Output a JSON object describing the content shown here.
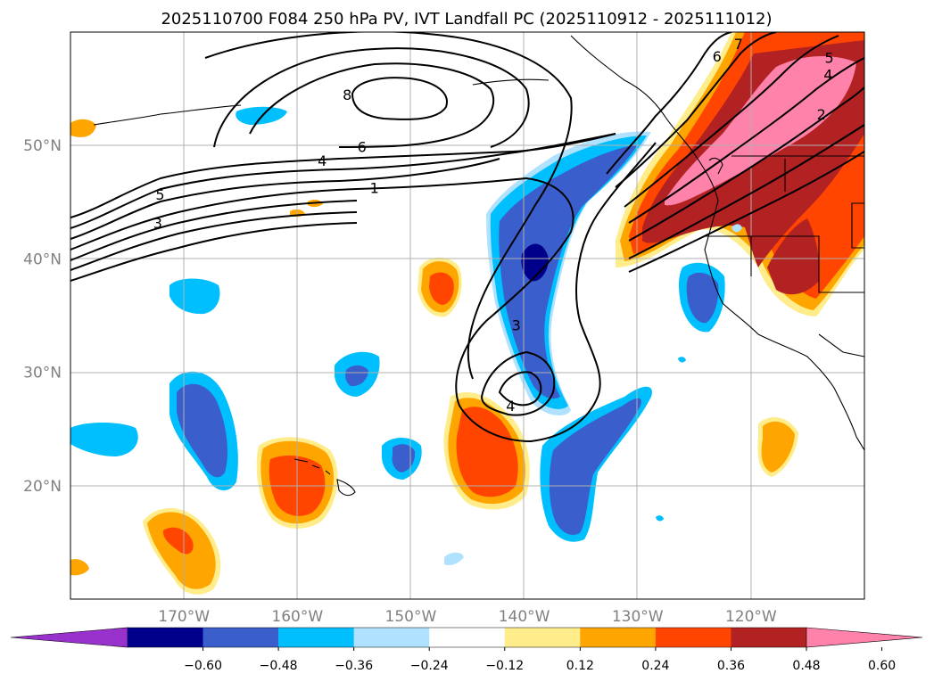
{
  "chart_data": {
    "type": "contour-map",
    "title": "2025110700 F084 250 hPa PV, IVT Landfall PC (2025110912 - 2025111012)",
    "projection": "PlateCarree",
    "xlim": [
      -180,
      -110
    ],
    "ylim": [
      10,
      60
    ],
    "grid": true,
    "xticks": [
      {
        "value": -170,
        "label": "170°W"
      },
      {
        "value": -160,
        "label": "160°W"
      },
      {
        "value": -150,
        "label": "150°W"
      },
      {
        "value": -140,
        "label": "140°W"
      },
      {
        "value": -130,
        "label": "130°W"
      },
      {
        "value": -120,
        "label": "120°W"
      }
    ],
    "yticks": [
      {
        "value": 20,
        "label": "20°N"
      },
      {
        "value": 30,
        "label": "30°N"
      },
      {
        "value": 40,
        "label": "40°N"
      },
      {
        "value": 50,
        "label": "50°N"
      }
    ],
    "shading": {
      "levels": [
        -0.6,
        -0.48,
        -0.36,
        -0.24,
        -0.12,
        0.12,
        0.24,
        0.36,
        0.48,
        0.6
      ],
      "colors": [
        "#9932cc",
        "#00008b",
        "#3a5fcd",
        "#00bfff",
        "#b0e2ff",
        "#ffffff",
        "#ffec8b",
        "#ffa500",
        "#ff4500",
        "#b22222",
        "#ff82ab"
      ],
      "tick_labels": [
        "−0.60",
        "−0.48",
        "−0.36",
        "−0.24",
        "−0.12",
        "0.12",
        "0.24",
        "0.36",
        "0.48",
        "0.60"
      ],
      "extend": "both"
    },
    "contour_labels": [
      {
        "text": "8",
        "lon": -155.6,
        "lat": 54.4
      },
      {
        "text": "6",
        "lon": -154.3,
        "lat": 49.8
      },
      {
        "text": "4",
        "lon": -157.8,
        "lat": 48.6
      },
      {
        "text": "1",
        "lon": -153.2,
        "lat": 46.2
      },
      {
        "text": "5",
        "lon": -172.1,
        "lat": 45.6
      },
      {
        "text": "3",
        "lon": -172.3,
        "lat": 43.1
      },
      {
        "text": "3",
        "lon": -140.7,
        "lat": 34.1
      },
      {
        "text": "4",
        "lon": -141.2,
        "lat": 27.0
      },
      {
        "text": "7",
        "lon": -121.1,
        "lat": 58.9
      },
      {
        "text": "6",
        "lon": -123.0,
        "lat": 57.8
      },
      {
        "text": "5",
        "lon": -113.1,
        "lat": 57.7
      },
      {
        "text": "4",
        "lon": -113.2,
        "lat": 56.2
      },
      {
        "text": "2",
        "lon": -113.8,
        "lat": 52.7
      }
    ]
  }
}
